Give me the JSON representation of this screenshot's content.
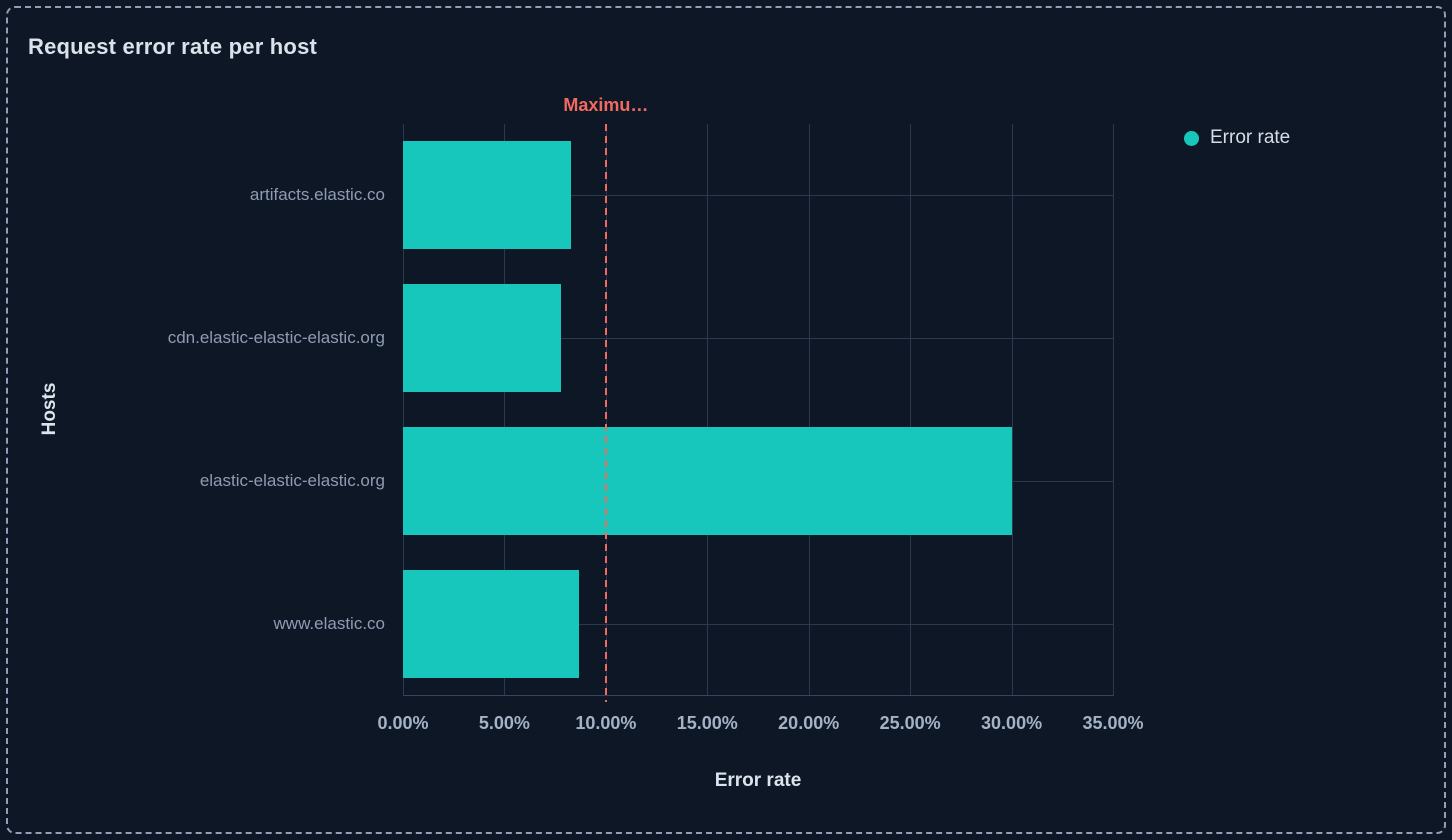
{
  "panel": {
    "title": "Request error rate per host"
  },
  "legend": {
    "position": "right",
    "items": [
      {
        "label": "Error rate",
        "color": "#18c7bc"
      }
    ]
  },
  "chart_data": {
    "type": "bar",
    "orientation": "horizontal",
    "title": "Request error rate per host",
    "xlabel": "Error rate",
    "ylabel": "Hosts",
    "categories": [
      "artifacts.elastic.co",
      "cdn.elastic-elastic-elastic.org",
      "elastic-elastic-elastic.org",
      "www.elastic.co"
    ],
    "series": [
      {
        "name": "Error rate",
        "values": [
          8.3,
          7.8,
          30.0,
          8.7
        ],
        "color": "#18c7bc"
      }
    ],
    "xlim": [
      0,
      35
    ],
    "x_tick_values": [
      0,
      5,
      10,
      15,
      20,
      25,
      30,
      35
    ],
    "x_ticks": [
      "0.00%",
      "5.00%",
      "10.00%",
      "15.00%",
      "20.00%",
      "25.00%",
      "30.00%",
      "35.00%"
    ],
    "grid": true,
    "legend_position": "right",
    "threshold": {
      "value": 10,
      "label": "Maximu…",
      "color": "#f2695f",
      "style": "dashed"
    }
  },
  "colors": {
    "background": "#0e1726",
    "bar": "#18c7bc",
    "threshold": "#f2695f",
    "grid": "#2a3850",
    "border": "#8fa0b8"
  }
}
